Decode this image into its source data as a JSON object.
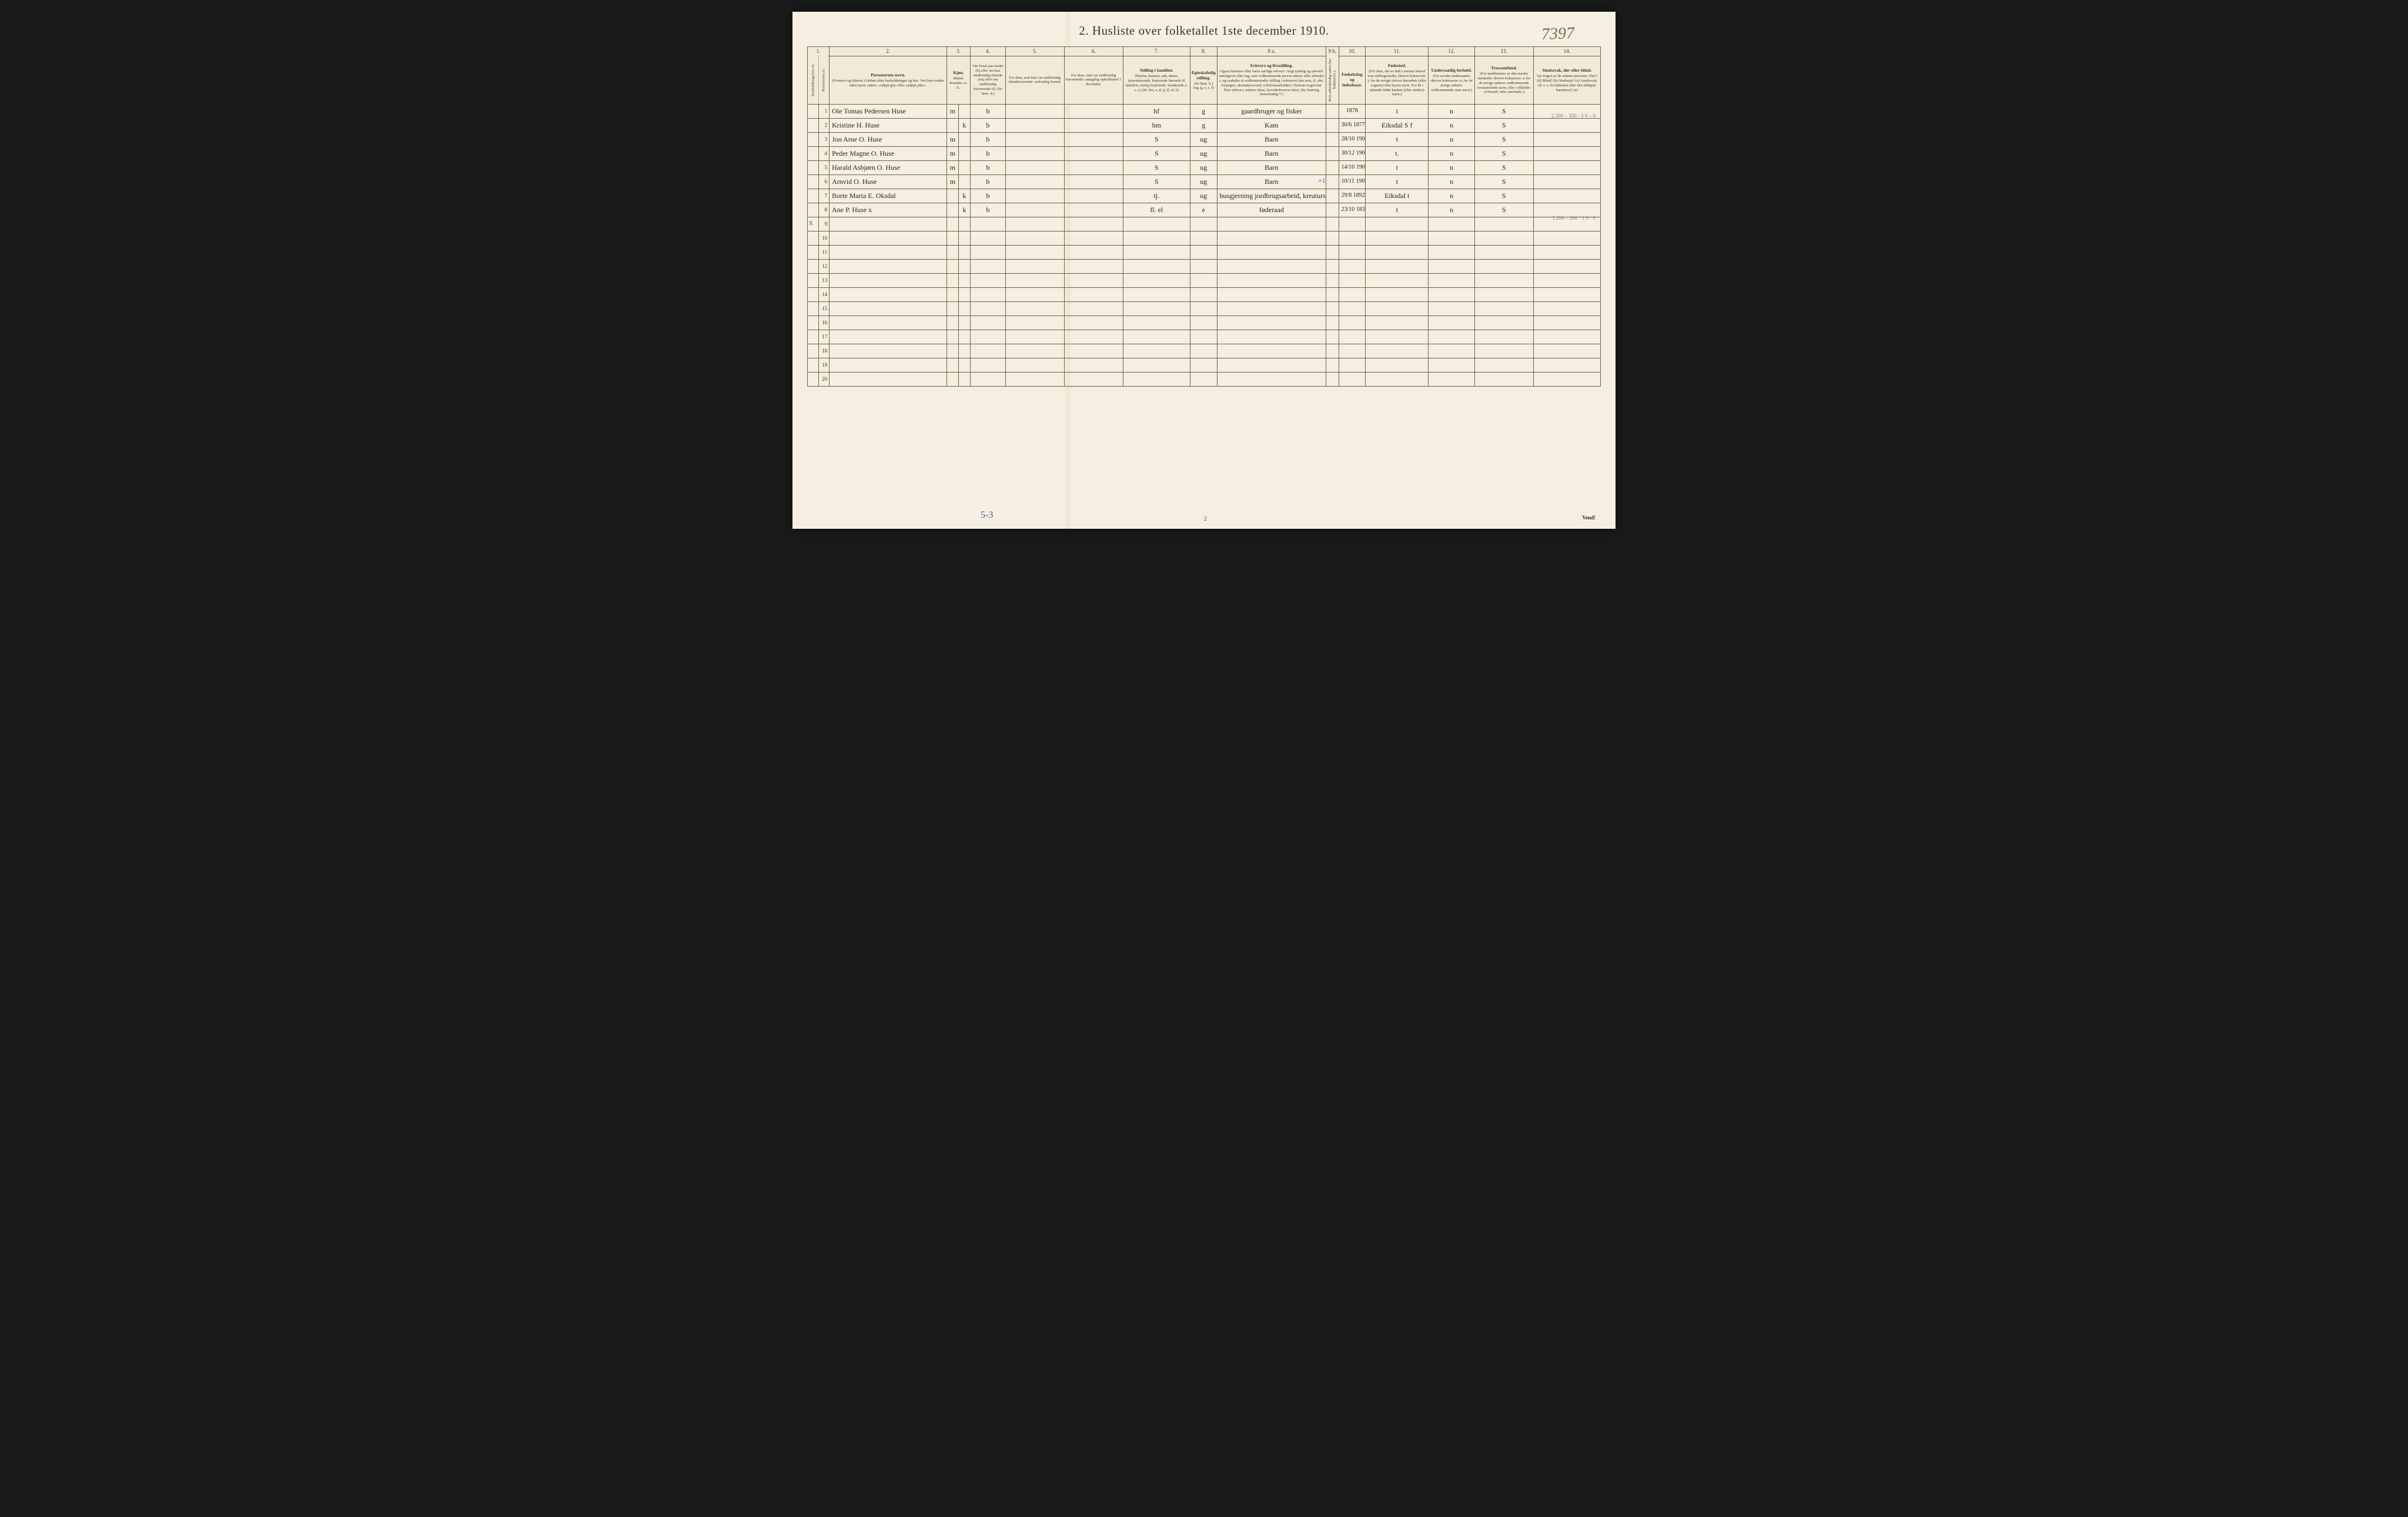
{
  "title": "2.  Husliste over folketallet 1ste december 1910.",
  "handwritten_page_number": "7397",
  "colnums": [
    "1.",
    "2.",
    "3.",
    "4.",
    "5.",
    "6.",
    "7.",
    "8.",
    "9 a.",
    "9 b.",
    "10.",
    "11.",
    "12.",
    "13.",
    "14."
  ],
  "headers": {
    "c1a": {
      "main": "Husholdningernes nr."
    },
    "c1b": {
      "main": "Personernes nr."
    },
    "c2": {
      "main": "Personernes navn.",
      "sub": "(Fornavn og tilnavn.) Ordnet efter husholdninger og hus. Ved barn endnu uden navn, sættes: «udøpt gut» eller «udøpt pike»."
    },
    "c3": {
      "main": "Kjøn.",
      "sub": "Mænd. Kvinder. m. k."
    },
    "c4": {
      "main": "",
      "sub": "Om bosat paa stedet (b) eller om kun midlertidig tilstede (mt) eller om midlertidig fraværende (f). (Se bem. 4.)"
    },
    "c5": {
      "main": "",
      "sub": "For dem, som kun var midlertidig tilstedeværende: sedvanlig bosted."
    },
    "c6": {
      "main": "",
      "sub": "For dem, som var midlertidig fraværende: antagelig opholdssted 1 december."
    },
    "c7": {
      "main": "Stilling i familien.",
      "sub": "(Husfar, husmor, søn, datter, tjenestetyende, losjerende hørende til familien, enslig losjerende, besøkende o. s. v.) (hf, hm, s, d, tj, fl, el, b)"
    },
    "c8": {
      "main": "Egteskabelig stilling.",
      "sub": "(Se bem. 6.) (ug, g, e, s, f)"
    },
    "c9a": {
      "main": "Erhverv og livsstilling.",
      "sub": "Ogsaa husmors eller barns særlige erhverv. Angi tydelig og specielt næringsvei eller fag, som vedkommende person utøver eller arbeider i, og saaledes at vedkommendes stilling i erhvervet kan sees, (f. eks. forpagter, skomakersvend, celluloisearbeider). Dersom nogen har flere erhverv, anføres disse, hovederhvervet først. (Se forøvrig bemerkning 7.)"
    },
    "c9b": {
      "main": "",
      "sub": "Hvis arbeidsledig sættes her bokstaven a"
    },
    "c10": {
      "main": "Fødselsdag og fødselsaar."
    },
    "c11": {
      "main": "Fødested.",
      "sub": "(For dem, der er født i samme herred som tællingsstedet, skrives bokstaven: t; for de øvrige skrives herredets (eller sognets) eller byens navn. For de i utlandet fødte landets (eller stedets) navn.)"
    },
    "c12": {
      "main": "Undersaatlig forhold.",
      "sub": "(For norske undersaatter skrives bokstaven: n; for de øvrige anføres vedkommende stats navn.)"
    },
    "c13": {
      "main": "Trossamfund.",
      "sub": "(For medlemmer av den norske statskirke skrives bokstaven: s; for de øvrige anføres vedkommende trossamfunds navn, eller i tilfælde: «Uttraadt, intet samfund».)"
    },
    "c14": {
      "main": "Sindssvak, døv eller blind.",
      "sub": "Var nogen av de anførte personer: Døv? (d) Blind? (b) Sindssyk? (s) Aandssvak (d. v. s. fra fødselen eller den tidligste barndom)? (a)"
    }
  },
  "rows": [
    {
      "n": "1",
      "name": "Ole Tomas Pedersen Huse",
      "mk": "m",
      "b": "b",
      "c7": "hf",
      "c8": "g",
      "c9": "gaardbruger og fisker",
      "c10": "1878",
      "c11": "t",
      "c12": "n",
      "c13": "S",
      "c14": ""
    },
    {
      "n": "2",
      "name": "Kristine H. Huse",
      "mk": "k",
      "b": "b",
      "c7": "hm",
      "c8": "g",
      "c9": "Kam",
      "c10": "30/6 1877",
      "c11": "Eiksdal S f",
      "c12": "n",
      "c13": "S",
      "c14": ""
    },
    {
      "n": "3",
      "name": "Jon Arne O. Huse",
      "mk": "m",
      "b": "b",
      "c7": "S",
      "c8": "ug",
      "c9": "Barn",
      "c10": "28/10 1902",
      "c11": "t",
      "c12": "n",
      "c13": "S",
      "c14": ""
    },
    {
      "n": "4",
      "name": "Peder Magne O. Huse",
      "mk": "m",
      "b": "b",
      "c7": "S",
      "c8": "ug",
      "c9": "Barn",
      "c10": "30/12 1905",
      "c11": "t.",
      "c12": "n",
      "c13": "S",
      "c14": ""
    },
    {
      "n": "5",
      "name": "Harald Asbjørn O. Huse",
      "mk": "m",
      "b": "b",
      "c7": "S",
      "c8": "ug",
      "c9": "Barn",
      "c10": "14/10 1907",
      "c11": "t",
      "c12": "n",
      "c13": "S",
      "c14": ""
    },
    {
      "n": "6",
      "name": "Arnvid O. Huse",
      "mk": "m",
      "b": "b",
      "c7": "S",
      "c8": "ug",
      "c9": "Barn",
      "c10": "10/11 1909",
      "c11": "t",
      "c12": "n",
      "c13": "S",
      "c14": ""
    },
    {
      "n": "7",
      "name": "Borte Marta E. Oksdal",
      "mk": "k",
      "b": "b",
      "c7": "tj.",
      "c8": "ug",
      "c9": "husgjerning jordbrugsarbeid, kreaturstel",
      "c10": "29/8 1892",
      "c11": "Eiksdal t",
      "c12": "n",
      "c13": "S",
      "c14": ""
    },
    {
      "n": "8",
      "name": "Ane P. Huse x",
      "mk": "k",
      "b": "b",
      "c7": "fl. el",
      "c8": "e",
      "c9": "føderaad",
      "c10": "23/10 1837",
      "c11": "t",
      "c12": "n",
      "c13": "S",
      "c14": ""
    }
  ],
  "empty_rows": [
    "9",
    "10",
    "11",
    "12",
    "13",
    "14",
    "15",
    "16",
    "17",
    "18",
    "19",
    "20"
  ],
  "margin_notes": {
    "top_right": "2.300 – 350 · 5\n0 – 0",
    "mid_right": "1.200 – 200 · 1\n0 · 0",
    "left_x": "x",
    "plus1": "+1"
  },
  "footer": {
    "blue_note": "5-3",
    "page_num": "2",
    "vend": "Vend!"
  },
  "colors": {
    "paper": "#f4efe0",
    "ink": "#3a3428",
    "rule": "#6b5f48",
    "handwriting": "#2a2418",
    "pencil": "#8a7a60",
    "blue_pencil": "#5a4fb8"
  }
}
